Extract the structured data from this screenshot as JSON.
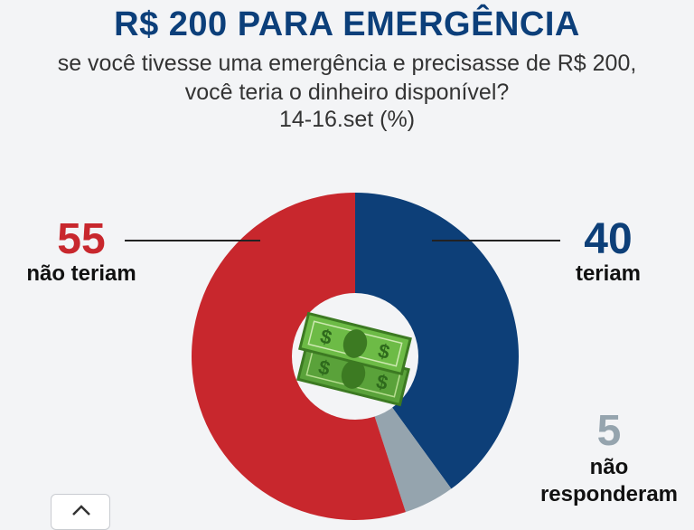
{
  "header": {
    "title": "R$ 200 PARA EMERGÊNCIA",
    "subtitle_line1": "se você tivesse uma emergência e precisasse de R$ 200,",
    "subtitle_line2": "você teria o dinheiro disponível?",
    "subtitle_line3": "14-16.set (%)"
  },
  "chart_data": {
    "type": "pie",
    "donut": true,
    "slices": [
      {
        "label": "teriam",
        "value": 40,
        "display": "40",
        "color": "#0d3f78"
      },
      {
        "label_line1": "não",
        "label_line2": "responderam",
        "value": 5,
        "display": "5",
        "color": "#95a4ae"
      },
      {
        "label": "não teriam",
        "value": 55,
        "display": "55",
        "color": "#c8272d"
      }
    ],
    "center_icon": "money-bills-icon",
    "center_icon_color": "#5aa23a"
  },
  "scroll_button": {
    "icon": "chevron-up-icon"
  }
}
